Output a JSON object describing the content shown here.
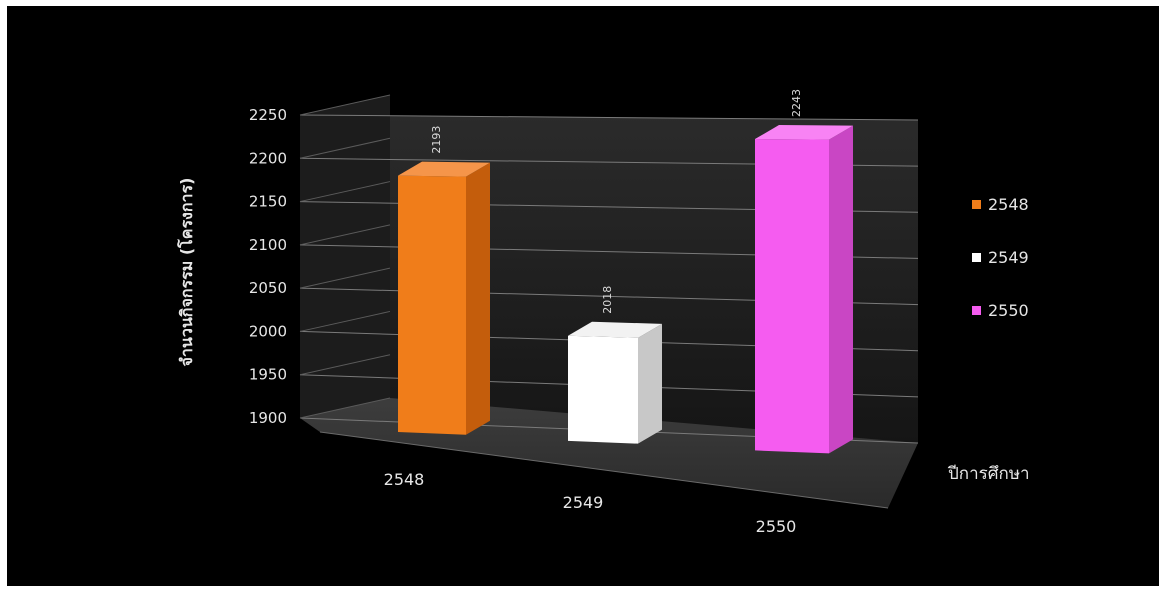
{
  "chart_data": {
    "type": "bar",
    "categories": [
      "2548",
      "2549",
      "2550"
    ],
    "values": [
      2193,
      2018,
      2243
    ],
    "ylabel": "จำนวนกิจกรรม (โครงการ)",
    "xlabel": "ปีการศึกษา",
    "ylim": [
      1900,
      2250
    ],
    "yticks": [
      1900,
      1950,
      2000,
      2050,
      2100,
      2150,
      2200,
      2250
    ],
    "grid": true,
    "legend_position": "right",
    "legend": [
      "2548",
      "2549",
      "2550"
    ],
    "colors": [
      "#f07d1a",
      "#ffffff",
      "#f55cf0"
    ],
    "background": "#000000"
  }
}
